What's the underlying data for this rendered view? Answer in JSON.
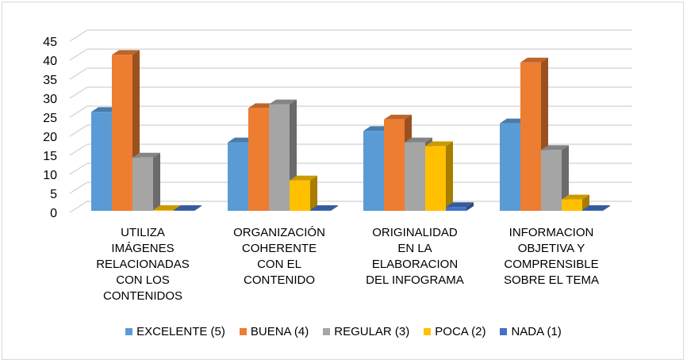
{
  "chart_data": {
    "type": "bar",
    "categories": [
      [
        "UTILIZA",
        "IMÁGENES",
        "RELACIONADAS",
        "CON LOS",
        "CONTENIDOS"
      ],
      [
        "ORGANIZACIÓN",
        "COHERENTE",
        "CON EL",
        "CONTENIDO"
      ],
      [
        "ORIGINALIDAD",
        "EN LA",
        "ELABORACION",
        "DEL INFOGRAMA"
      ],
      [
        "INFORMACION",
        "OBJETIVA Y",
        "COMPRENSIBLE",
        "SOBRE EL TEMA"
      ]
    ],
    "series": [
      {
        "name": "EXCELENTE (5)",
        "color": "#5b9bd5",
        "values": [
          26,
          18,
          21,
          23
        ]
      },
      {
        "name": "BUENA (4)",
        "color": "#ed7d31",
        "values": [
          41,
          27,
          24,
          39
        ]
      },
      {
        "name": "REGULAR (3)",
        "color": "#a5a5a5",
        "values": [
          14,
          28,
          18,
          16
        ]
      },
      {
        "name": "POCA (2)",
        "color": "#ffc000",
        "values": [
          0,
          8,
          17,
          3
        ]
      },
      {
        "name": "NADA (1)",
        "color": "#4472c4",
        "values": [
          0,
          0,
          1,
          0
        ]
      }
    ],
    "yticks": [
      "0",
      "5",
      "10",
      "15",
      "20",
      "25",
      "30",
      "35",
      "40",
      "45"
    ],
    "ylim": [
      0,
      45
    ],
    "grid": true,
    "legend": "bottom",
    "style": "3d-clustered-column"
  }
}
